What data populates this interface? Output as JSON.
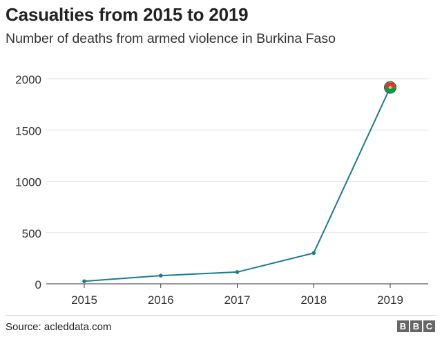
{
  "header": {
    "title": "Casualties from 2015 to 2019",
    "subtitle": "Number of deaths from armed violence in Burkina Faso"
  },
  "footer": {
    "source": "Source: acleddata.com",
    "logo_letters": [
      "B",
      "B",
      "C"
    ]
  },
  "colors": {
    "line": "#1a7a96",
    "grid": "#e2e2e2",
    "axis": "#333333",
    "flag_red": "#ef2b2d",
    "flag_green": "#009e49",
    "flag_star": "#fcd116"
  },
  "chart_data": {
    "type": "line",
    "x": [
      "2015",
      "2016",
      "2017",
      "2018",
      "2019"
    ],
    "series": [
      {
        "values": [
          25,
          80,
          115,
          300,
          1915
        ]
      }
    ],
    "ylim": [
      0,
      2000
    ],
    "yticks": [
      0,
      500,
      1000,
      1500,
      2000
    ],
    "xlabel": "",
    "ylabel": "",
    "grid": true,
    "end_marker": "burkina-faso-flag-icon"
  }
}
